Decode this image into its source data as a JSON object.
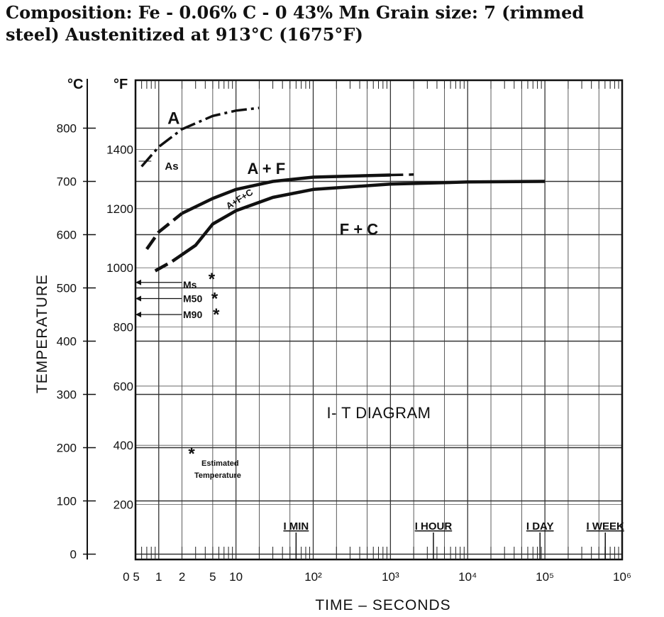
{
  "caption": {
    "line1": "Composition: Fe - 0.06% C - 0 43% Mn Grain size: 7 (rimmed",
    "line2": "steel) Austenitized at 913°C (1675°F)"
  },
  "chart_data": {
    "type": "line",
    "title": "I- T DIAGRAM",
    "xlabel": "TIME – SECONDS",
    "ylabel": "TEMPERATURE",
    "x_scale": "log",
    "xlim": [
      0.5,
      1000000
    ],
    "ylim_c": [
      -10,
      890
    ],
    "x_tick_labels": [
      "0 5",
      "1",
      "2",
      "5",
      "10",
      "10²",
      "10³",
      "10⁴",
      "10⁵",
      "10⁶"
    ],
    "x_tick_values": [
      0.5,
      1,
      2,
      5,
      10,
      100,
      1000,
      10000,
      100000,
      1000000
    ],
    "y_c_unit": "°C",
    "y_f_unit": "°F",
    "y_c_ticks": [
      0,
      100,
      200,
      300,
      400,
      500,
      600,
      700,
      800
    ],
    "y_f_ticks": [
      {
        "label": "200",
        "c": 93.3
      },
      {
        "label": "400",
        "c": 204.4
      },
      {
        "label": "600",
        "c": 315.6
      },
      {
        "label": "800",
        "c": 426.7
      },
      {
        "label": "1000",
        "c": 537.8
      },
      {
        "label": "1200",
        "c": 648.9
      },
      {
        "label": "1400",
        "c": 760
      }
    ],
    "time_marks": [
      {
        "label": "I MIN",
        "x": 60
      },
      {
        "label": "I HOUR",
        "x": 3600
      },
      {
        "label": "I DAY",
        "x": 86400
      },
      {
        "label": "I WEEK",
        "x": 604800
      }
    ],
    "series": [
      {
        "style": "dash-dot",
        "x": [
          0.6,
          1,
          2,
          5,
          10,
          20
        ],
        "y": [
          728,
          765,
          798,
          823,
          833,
          838
        ]
      },
      {
        "style": "dashed-then-solid",
        "x": [
          0.7,
          1,
          2,
          5,
          10,
          30,
          100,
          1000
        ],
        "y": [
          573,
          605,
          640,
          668,
          685,
          700,
          708,
          712
        ]
      },
      {
        "style": "dashed",
        "x": [
          1000,
          2000
        ],
        "y": [
          712,
          713
        ]
      },
      {
        "style": "dashed-then-solid",
        "x": [
          0.9,
          1.5,
          3,
          5,
          10,
          30,
          100,
          1000,
          10000,
          100000
        ],
        "y": [
          532,
          550,
          580,
          620,
          645,
          670,
          685,
          695,
          699,
          700
        ]
      }
    ],
    "region_labels": [
      {
        "text": "A",
        "x": 1.3,
        "y": 808
      },
      {
        "text": "A + F",
        "x": 14,
        "y": 714
      },
      {
        "text": "A+F+C",
        "x": 8,
        "y": 647
      },
      {
        "text": "F + C",
        "x": 220,
        "y": 600
      }
    ],
    "points": [
      {
        "label": "Ms",
        "marker": "*",
        "x": 5.5,
        "y": 517
      },
      {
        "label": "M50",
        "marker": "*",
        "x": 6,
        "y": 480
      },
      {
        "label": "M90",
        "marker": "*",
        "x": 6.3,
        "y": 450
      }
    ],
    "a_s_label": "As",
    "legend_note": {
      "marker": "*",
      "line1": "Estimated",
      "line2": "Temperature"
    },
    "grid": true
  }
}
